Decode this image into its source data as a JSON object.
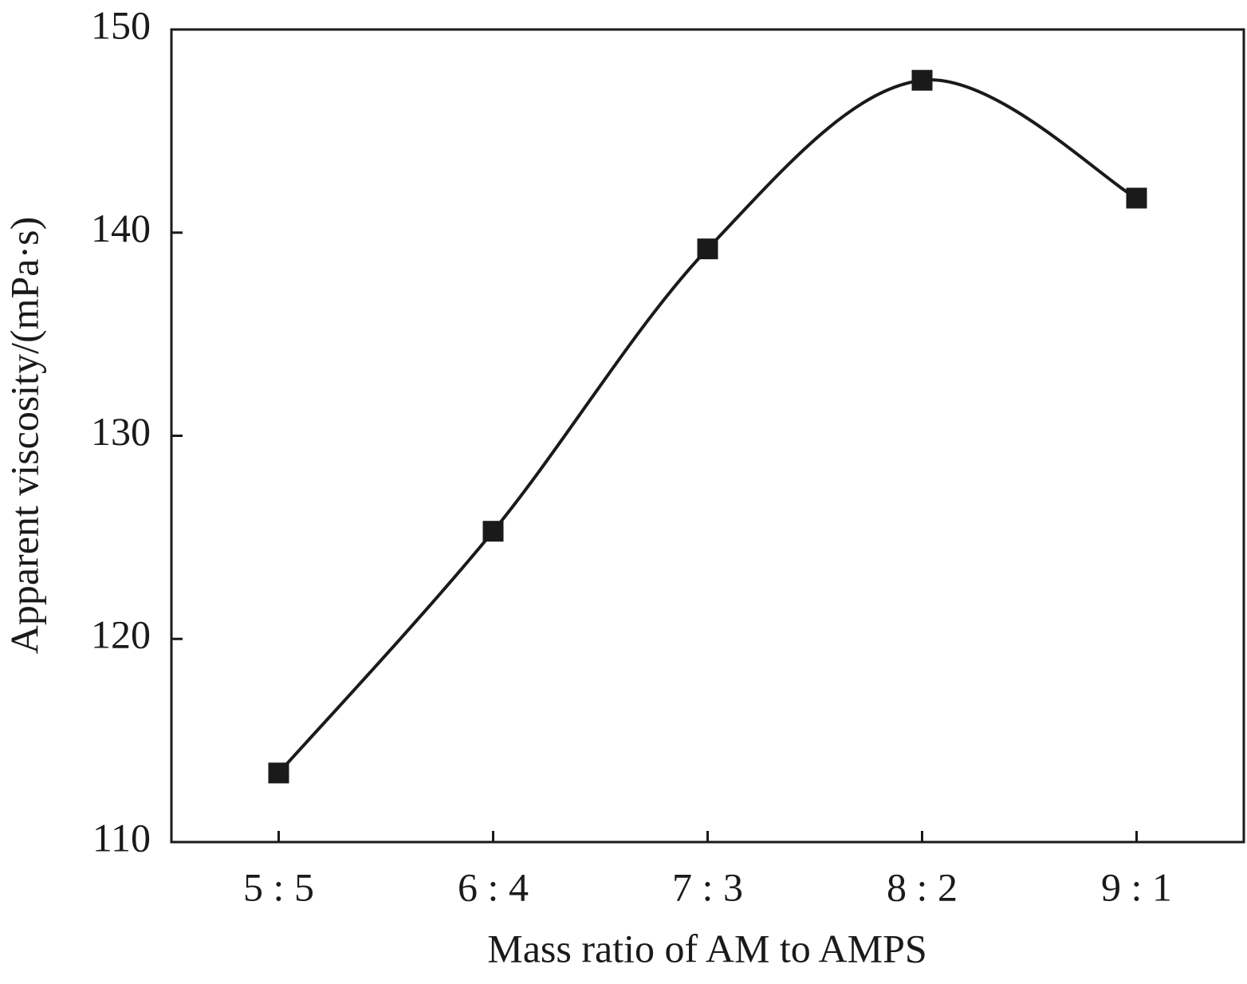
{
  "chart_data": {
    "type": "line",
    "x_label": "Mass ratio of AM to AMPS",
    "y_label": "Apparent viscosity/(mPa·s)",
    "categories": [
      "5 : 5",
      "6 : 4",
      "7 : 3",
      "8 : 2",
      "9 : 1"
    ],
    "series": [
      {
        "color": "#1a1a1a",
        "values": [
          113.4,
          125.3,
          139.2,
          147.5,
          141.7
        ]
      }
    ],
    "ylim": [
      110,
      150
    ],
    "yticks": [
      110,
      120,
      130,
      140,
      150
    ]
  }
}
